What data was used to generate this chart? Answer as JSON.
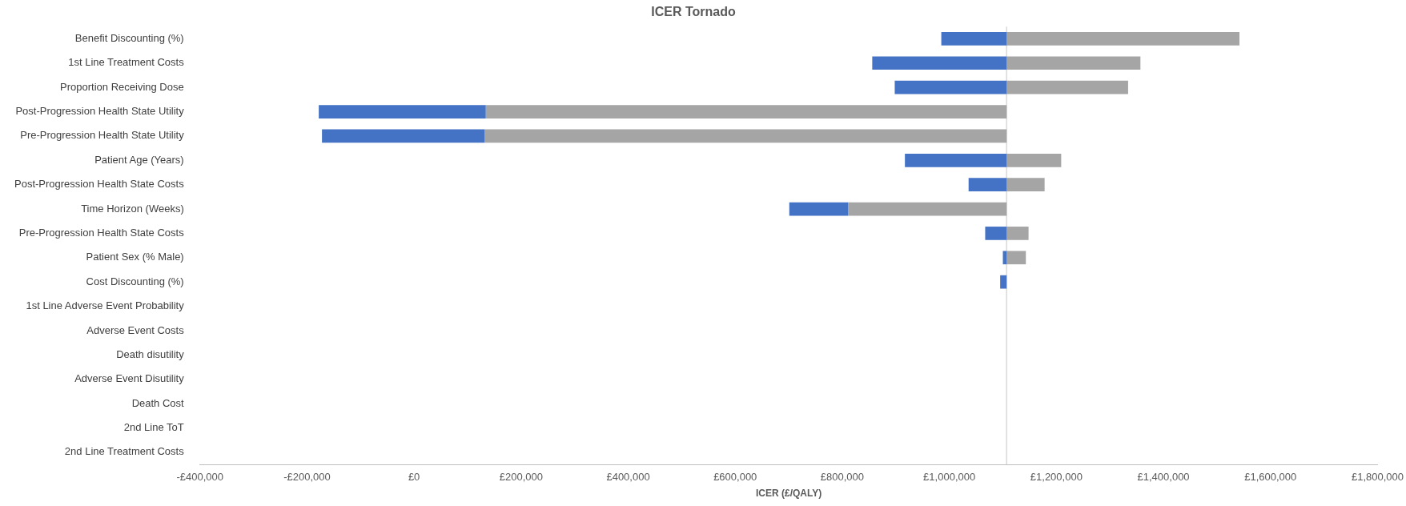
{
  "chart_data": {
    "type": "bar",
    "orientation": "horizontal",
    "title": "ICER Tornado",
    "xlabel": "ICER (£/QALY)",
    "categories": [
      "Benefit Discounting (%)",
      "1st Line Treatment Costs",
      "Proportion Receiving Dose",
      "Post-Progression Health State Utility",
      "Pre-Progression Health State Utility",
      "Patient Age (Years)",
      "Post-Progression Health State Costs",
      "Time Horizon (Weeks)",
      "Pre-Progression Health State Costs",
      "Patient Sex (% Male)",
      "Cost Discounting (%)",
      "1st Line Adverse Event Probability",
      "Adverse Event Costs",
      "Death disutility",
      "Adverse Event Disutility",
      "Death Cost",
      "2nd Line ToT",
      "2nd Line Treatment Costs"
    ],
    "series": [
      {
        "color": "#4472c4",
        "base": [
          985000,
          856000,
          898000,
          -178000,
          -172000,
          917000,
          1036000,
          701000,
          1067000,
          1100000,
          1095000,
          null,
          null,
          null,
          null,
          null,
          null,
          null
        ],
        "values": [
          122000,
          251000,
          209000,
          312000,
          304000,
          190000,
          71000,
          110000,
          40000,
          7000,
          12000,
          null,
          null,
          null,
          null,
          null,
          null,
          null
        ]
      },
      {
        "color": "#a5a5a5",
        "base": [
          1107000,
          1107000,
          1107000,
          134000,
          132000,
          1107000,
          1107000,
          811000,
          1107000,
          1107000,
          null,
          null,
          null,
          null,
          null,
          null,
          null,
          null
        ],
        "values": [
          435000,
          250000,
          227000,
          973000,
          975000,
          102000,
          71000,
          296000,
          41000,
          36000,
          null,
          null,
          null,
          null,
          null,
          null,
          null,
          null
        ]
      }
    ],
    "xlim": [
      -400000,
      1800000
    ],
    "xticks": [
      {
        "value": -400000,
        "label": "-£400,000"
      },
      {
        "value": -200000,
        "label": "-£200,000"
      },
      {
        "value": 0,
        "label": "£0"
      },
      {
        "value": 200000,
        "label": "£200,000"
      },
      {
        "value": 400000,
        "label": "£400,000"
      },
      {
        "value": 600000,
        "label": "£600,000"
      },
      {
        "value": 800000,
        "label": "£800,000"
      },
      {
        "value": 1000000,
        "label": "£1,000,000"
      },
      {
        "value": 1200000,
        "label": "£1,200,000"
      },
      {
        "value": 1400000,
        "label": "£1,400,000"
      },
      {
        "value": 1600000,
        "label": "£1,600,000"
      },
      {
        "value": 1800000,
        "label": "£1,800,000"
      }
    ],
    "ref_lines": [
      {
        "axis": "x",
        "value": 1107000,
        "color": "#d9d9d9"
      }
    ],
    "grid": false,
    "legend": false
  }
}
